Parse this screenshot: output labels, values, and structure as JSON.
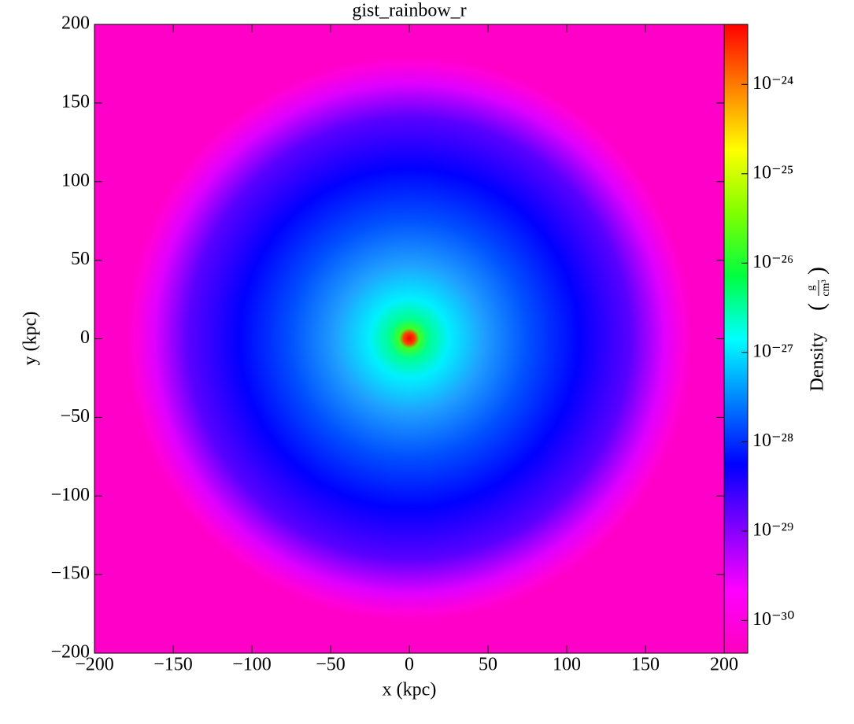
{
  "chart_data": {
    "type": "image",
    "title": "gist_rainbow_r",
    "x_label": "x  (kpc)",
    "y_label": "y  (kpc)",
    "xlim": [
      -200,
      200
    ],
    "ylim": [
      -200,
      200
    ],
    "xticks": [
      {
        "value": -200,
        "label": "−200"
      },
      {
        "value": -150,
        "label": "−150"
      },
      {
        "value": -100,
        "label": "−100"
      },
      {
        "value": -50,
        "label": "−50"
      },
      0,
      50,
      100,
      150,
      200
    ],
    "yticks": [
      {
        "value": -200,
        "label": "−200"
      },
      {
        "value": -150,
        "label": "−150"
      },
      {
        "value": -100,
        "label": "−100"
      },
      {
        "value": -50,
        "label": "−50"
      },
      0,
      50,
      100,
      150,
      200
    ],
    "grid": false,
    "colorbar": {
      "label": "Density",
      "units_numerator": "g",
      "units_denominator": "cm³",
      "log_scale": true,
      "clim": [
        4.3e-31,
        4.7e-24
      ],
      "ticks": [
        {
          "value": 1e-30,
          "label": "10⁻³⁰"
        },
        {
          "value": 1e-29,
          "label": "10⁻²⁹"
        },
        {
          "value": 1e-28,
          "label": "10⁻²⁸"
        },
        {
          "value": 1e-27,
          "label": "10⁻²⁷"
        },
        {
          "value": 1e-26,
          "label": "10⁻²⁶"
        },
        {
          "value": 1e-25,
          "label": "10⁻²⁵"
        },
        {
          "value": 1e-24,
          "label": "10⁻²⁴"
        }
      ],
      "colors": [
        "#ff00bf",
        "#ff00ff",
        "#8000ff",
        "#0000ff",
        "#0080ff",
        "#00ffff",
        "#00ff40",
        "#80ff00",
        "#ffff00",
        "#ff8000",
        "#ff0000"
      ]
    }
  }
}
